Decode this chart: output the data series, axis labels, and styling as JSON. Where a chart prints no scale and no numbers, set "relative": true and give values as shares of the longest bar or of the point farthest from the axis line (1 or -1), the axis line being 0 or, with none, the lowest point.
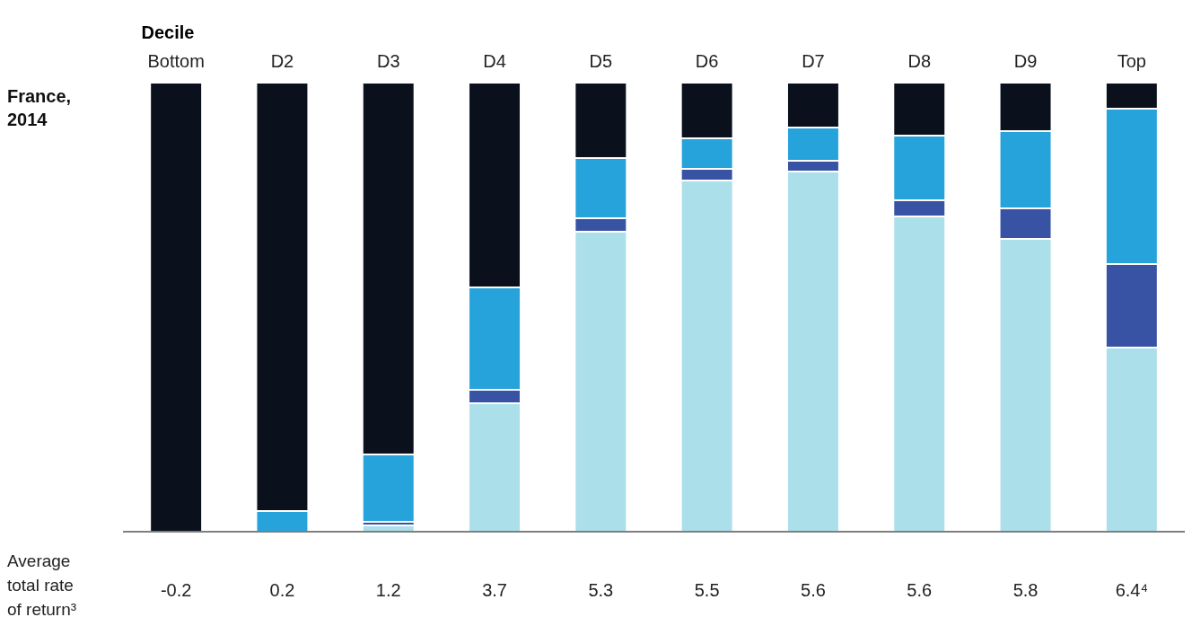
{
  "chart_data": {
    "type": "bar",
    "stacked": true,
    "relative": true,
    "xlabel": "Decile",
    "ylabel": "France, 2014",
    "categories": [
      "Bottom",
      "D2",
      "D3",
      "D4",
      "D5",
      "D6",
      "D7",
      "D8",
      "D9",
      "Top"
    ],
    "series": [
      {
        "color": "#abdfe9",
        "values": [
          0,
          0,
          0.014,
          0.286,
          0.668,
          0.782,
          0.802,
          0.702,
          0.652,
          0.41
        ]
      },
      {
        "color": "#3953a4",
        "values": [
          0,
          0,
          0.008,
          0.03,
          0.03,
          0.026,
          0.024,
          0.036,
          0.068,
          0.186
        ]
      },
      {
        "color": "#27a3dc",
        "values": [
          0,
          0.046,
          0.15,
          0.228,
          0.134,
          0.068,
          0.074,
          0.144,
          0.172,
          0.346
        ]
      },
      {
        "color": "#0a111c",
        "values": [
          1,
          0.954,
          0.828,
          0.456,
          0.168,
          0.124,
          0.1,
          0.118,
          0.108,
          0.058
        ]
      }
    ],
    "annotations": [
      "Average total rate of return³",
      "-0.2",
      "0.2",
      "1.2",
      "3.7",
      "5.3",
      "5.5",
      "5.6",
      "5.6",
      "5.8",
      "6.4⁴"
    ]
  }
}
